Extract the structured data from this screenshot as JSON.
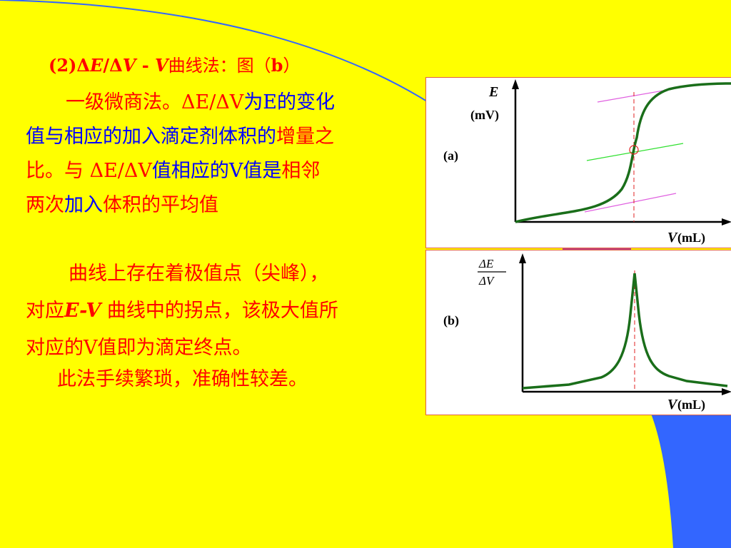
{
  "heading": {
    "prefix": "(2)Δ",
    "e": "E",
    "slash": "/Δ",
    "v": "V",
    "dash": " - ",
    "v2": "V",
    "suffix": "曲线法：图（",
    "fig": "b",
    "close": "）"
  },
  "para1": {
    "l1_a": "一级微商法。ΔE/ΔV",
    "l1_b": "为E的变化",
    "l2_a": "值与相应的加入滴定剂体积的",
    "l2_b": "增量之",
    "l3_a": "比。与 ΔE/ΔV",
    "l3_b": "值相应的V值是",
    "l3_c": "相邻",
    "l4_a": "两次",
    "l4_b": "加入",
    "l4_c": "体积的平均值"
  },
  "para2": {
    "l1": "曲线上存在着极值点（尖峰），",
    "l2_a": "对应",
    "l2_b": "E-V",
    "l2_c": " 曲线中的拐点，该极大值所",
    "l3": "对应的V值即为滴定终点。",
    "l4": "此法手续繁琐，准确性较差。"
  },
  "figure_a": {
    "label": "(a)",
    "ylabel_top": "E",
    "ylabel_unit": "(mV)",
    "xlabel_var": "V",
    "xlabel_unit": "(mL)"
  },
  "figure_b": {
    "label": "(b)",
    "ylabel_num": "ΔE",
    "ylabel_den": "ΔV",
    "xlabel_var": "V",
    "xlabel_unit": "(mL)"
  },
  "colors": {
    "background": "#ffff00",
    "text_red": "#ff0000",
    "text_blue": "#0000ff",
    "curve": "#1a6e1a",
    "decor_blue": "#3366ff"
  }
}
